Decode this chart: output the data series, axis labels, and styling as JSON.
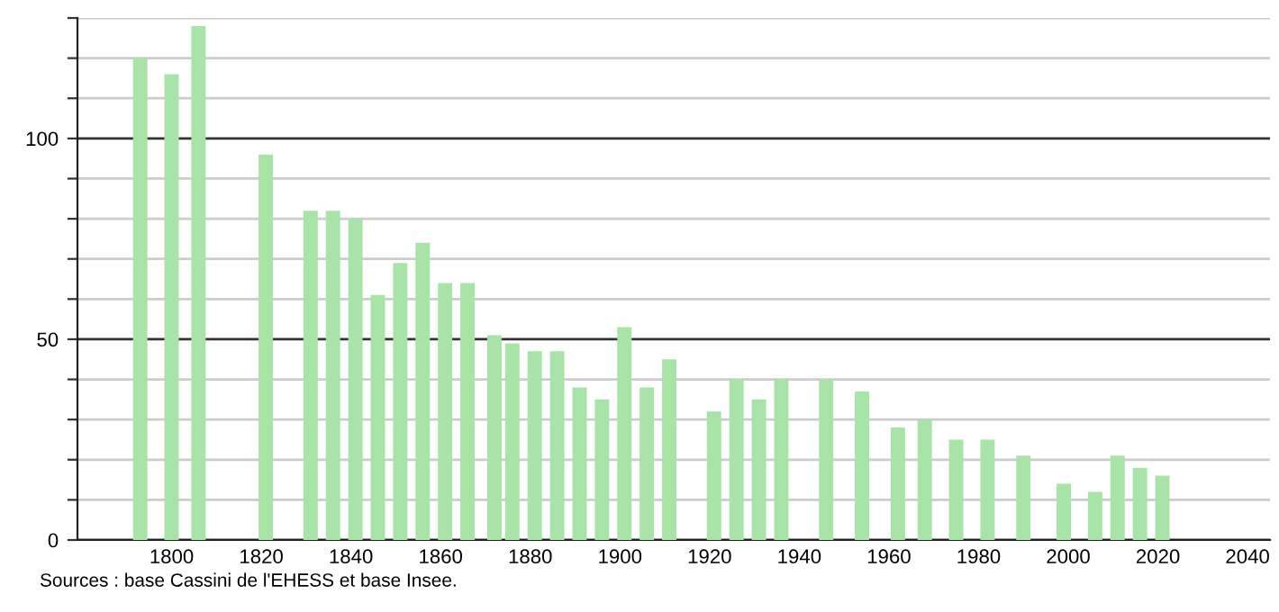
{
  "chart_data": {
    "type": "bar",
    "x": [
      1793,
      1800,
      1806,
      1821,
      1831,
      1836,
      1841,
      1846,
      1851,
      1856,
      1861,
      1866,
      1872,
      1876,
      1881,
      1886,
      1891,
      1896,
      1901,
      1906,
      1911,
      1921,
      1926,
      1931,
      1936,
      1946,
      1954,
      1962,
      1968,
      1975,
      1982,
      1990,
      1999,
      2006,
      2011,
      2016,
      2021
    ],
    "values": [
      120,
      116,
      128,
      96,
      82,
      82,
      80,
      61,
      69,
      74,
      64,
      64,
      51,
      49,
      47,
      47,
      38,
      35,
      53,
      38,
      45,
      32,
      40,
      35,
      40,
      40,
      37,
      28,
      30,
      25,
      25,
      21,
      14,
      12,
      21,
      18,
      16
    ],
    "color": "#a8e4a8",
    "xlim": [
      1779,
      2045
    ],
    "xticks": [
      1800,
      1820,
      1840,
      1860,
      1880,
      1900,
      1920,
      1940,
      1960,
      1980,
      2000,
      2020,
      2040
    ],
    "ylim": [
      0,
      130
    ],
    "yticks": [
      0,
      {
        "value": 10,
        "label": null
      },
      {
        "value": 20,
        "label": null
      },
      {
        "value": 30,
        "label": null
      },
      {
        "value": 40,
        "label": null
      },
      50,
      {
        "value": 60,
        "label": null
      },
      {
        "value": 70,
        "label": null
      },
      {
        "value": 80,
        "label": null
      },
      {
        "value": 90,
        "label": null
      },
      100,
      {
        "value": 110,
        "label": null
      },
      {
        "value": 120,
        "label": null
      },
      {
        "value": 130,
        "label": null
      }
    ],
    "grid": "y",
    "annotations": [
      "Sources : base Cassini de l'EHESS et base Insee."
    ]
  }
}
